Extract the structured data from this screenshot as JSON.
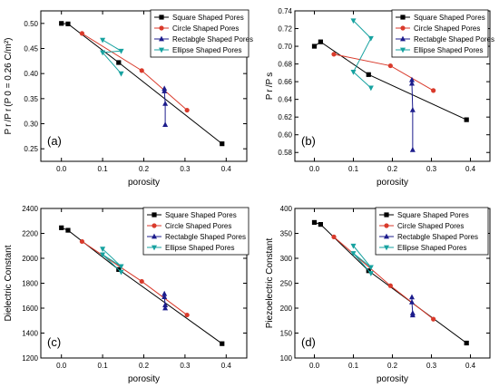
{
  "chart_data": [
    {
      "type": "line",
      "panel_letter": "(a)",
      "xlabel": "porosity",
      "ylabel": "P_r/P_r(P_0 = 0.26 C/m²)",
      "ylabel_display": "P r /P r (P 0 = 0.26 C/m²)",
      "xlim": [
        -0.05,
        0.45
      ],
      "ylim": [
        0.225,
        0.525
      ],
      "xticks": [
        0.0,
        0.1,
        0.2,
        0.3,
        0.4
      ],
      "xtick_labels": [
        "0.0",
        "0.1",
        "0.2",
        "0.3",
        "0.4"
      ],
      "yticks": [
        0.25,
        0.3,
        0.35,
        0.4,
        0.45,
        0.5
      ],
      "ytick_labels": [
        "0.25",
        "0.30",
        "0.35",
        "0.40",
        "0.45",
        "0.50"
      ],
      "legend_position": "top-right",
      "series": [
        {
          "name": "Square Shaped Pores",
          "color": "#000000",
          "marker": "square",
          "x": [
            0.0,
            0.016,
            0.139,
            0.39
          ],
          "y": [
            0.5,
            0.499,
            0.422,
            0.26
          ]
        },
        {
          "name": "Circle Shaped Pores",
          "color": "#d93a2b",
          "marker": "circle",
          "x": [
            0.05,
            0.195,
            0.305
          ],
          "y": [
            0.48,
            0.406,
            0.327
          ]
        },
        {
          "name": "Rectabgle Shaped Pores",
          "color": "#1c1c8c",
          "marker": "triangle-up",
          "x": [
            0.25,
            0.25,
            0.252,
            0.252
          ],
          "y": [
            0.37,
            0.365,
            0.34,
            0.298
          ]
        },
        {
          "name": "Ellipse Shaped Pores",
          "color": "#17a2a0",
          "marker": "triangle-down",
          "x": [
            0.1,
            0.145,
            0.1,
            0.145
          ],
          "y": [
            0.467,
            0.445,
            0.442,
            0.4
          ]
        }
      ]
    },
    {
      "type": "line",
      "panel_letter": "(b)",
      "xlabel": "porosity",
      "ylabel": "P_r/P_s",
      "ylabel_display": "P r /P s",
      "xlim": [
        -0.05,
        0.45
      ],
      "ylim": [
        0.57,
        0.74
      ],
      "xticks": [
        0.0,
        0.1,
        0.2,
        0.3,
        0.4
      ],
      "xtick_labels": [
        "0.0",
        "0.1",
        "0.2",
        "0.3",
        "0.4"
      ],
      "yticks": [
        0.58,
        0.6,
        0.62,
        0.64,
        0.66,
        0.68,
        0.7,
        0.72,
        0.74
      ],
      "ytick_labels": [
        "0.58",
        "0.60",
        "0.62",
        "0.64",
        "0.66",
        "0.68",
        "0.70",
        "0.72",
        "0.74"
      ],
      "legend_position": "top-right",
      "series": [
        {
          "name": "Square Shaped Pores",
          "color": "#000000",
          "marker": "square",
          "x": [
            0.0,
            0.016,
            0.139,
            0.39
          ],
          "y": [
            0.7,
            0.705,
            0.668,
            0.617
          ]
        },
        {
          "name": "Circle Shaped Pores",
          "color": "#d93a2b",
          "marker": "circle",
          "x": [
            0.05,
            0.195,
            0.305
          ],
          "y": [
            0.691,
            0.678,
            0.65
          ]
        },
        {
          "name": "Rectabgle Shaped Pores",
          "color": "#1c1c8c",
          "marker": "triangle-up",
          "x": [
            0.25,
            0.25,
            0.252,
            0.252
          ],
          "y": [
            0.662,
            0.658,
            0.628,
            0.583
          ]
        },
        {
          "name": "Ellipse Shaped Pores",
          "color": "#17a2a0",
          "marker": "triangle-down",
          "x": [
            0.1,
            0.145,
            0.1,
            0.145
          ],
          "y": [
            0.729,
            0.709,
            0.671,
            0.653
          ]
        }
      ]
    },
    {
      "type": "line",
      "panel_letter": "(c)",
      "xlabel": "porosity",
      "ylabel": "Dielectric Constant",
      "ylabel_display": "Dielectric Constant",
      "xlim": [
        -0.05,
        0.45
      ],
      "ylim": [
        1200,
        2400
      ],
      "xticks": [
        0.0,
        0.1,
        0.2,
        0.3,
        0.4
      ],
      "xtick_labels": [
        "0.0",
        "0.1",
        "0.2",
        "0.3",
        "0.4"
      ],
      "yticks": [
        1200,
        1400,
        1600,
        1800,
        2000,
        2200,
        2400
      ],
      "ytick_labels": [
        "1200",
        "1400",
        "1600",
        "1800",
        "2000",
        "2200",
        "2400"
      ],
      "legend_position": "top-right",
      "series": [
        {
          "name": "Square Shaped Pores",
          "color": "#000000",
          "marker": "square",
          "x": [
            0.0,
            0.016,
            0.139,
            0.39
          ],
          "y": [
            2245,
            2225,
            1910,
            1315
          ]
        },
        {
          "name": "Circle Shaped Pores",
          "color": "#d93a2b",
          "marker": "circle",
          "x": [
            0.05,
            0.195,
            0.305
          ],
          "y": [
            2135,
            1815,
            1545
          ]
        },
        {
          "name": "Rectabgle Shaped Pores",
          "color": "#1c1c8c",
          "marker": "triangle-up",
          "x": [
            0.25,
            0.25,
            0.252,
            0.252
          ],
          "y": [
            1715,
            1690,
            1625,
            1600
          ]
        },
        {
          "name": "Ellipse Shaped Pores",
          "color": "#17a2a0",
          "marker": "triangle-down",
          "x": [
            0.1,
            0.145,
            0.1,
            0.145
          ],
          "y": [
            2075,
            1935,
            2030,
            1890
          ]
        }
      ]
    },
    {
      "type": "line",
      "panel_letter": "(d)",
      "xlabel": "porosity",
      "ylabel": "Piezoelectric Constant",
      "ylabel_display": "Piezoelectric Constant",
      "xlim": [
        -0.05,
        0.45
      ],
      "ylim": [
        100,
        400
      ],
      "xticks": [
        0.0,
        0.1,
        0.2,
        0.3,
        0.4
      ],
      "xtick_labels": [
        "0.0",
        "0.1",
        "0.2",
        "0.3",
        "0.4"
      ],
      "yticks": [
        100,
        150,
        200,
        250,
        300,
        350,
        400
      ],
      "ytick_labels": [
        "100",
        "150",
        "200",
        "250",
        "300",
        "350",
        "400"
      ],
      "legend_position": "top-right",
      "series": [
        {
          "name": "Square Shaped Pores",
          "color": "#000000",
          "marker": "square",
          "x": [
            0.0,
            0.016,
            0.139,
            0.39
          ],
          "y": [
            372,
            368,
            275,
            130
          ]
        },
        {
          "name": "Circle Shaped Pores",
          "color": "#d93a2b",
          "marker": "circle",
          "x": [
            0.05,
            0.195,
            0.305
          ],
          "y": [
            343,
            245,
            178
          ]
        },
        {
          "name": "Rectabgle Shaped Pores",
          "color": "#1c1c8c",
          "marker": "triangle-up",
          "x": [
            0.25,
            0.25,
            0.252,
            0.252
          ],
          "y": [
            222,
            212,
            190,
            186
          ]
        },
        {
          "name": "Ellipse Shaped Pores",
          "color": "#17a2a0",
          "marker": "triangle-down",
          "x": [
            0.1,
            0.145,
            0.1,
            0.145
          ],
          "y": [
            325,
            282,
            310,
            270
          ]
        }
      ]
    }
  ]
}
